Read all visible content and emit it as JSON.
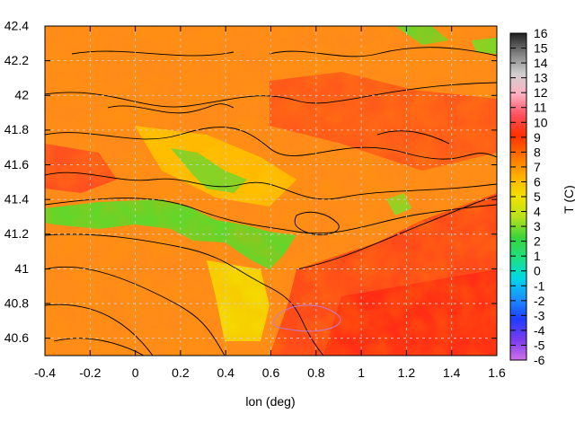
{
  "chart_data": {
    "type": "heatmap",
    "title": "",
    "xlabel": "lon (deg)",
    "ylabel": "",
    "colorbar_label": "T (C)",
    "xlim": [
      -0.4,
      1.6
    ],
    "ylim": [
      40.5,
      42.4
    ],
    "x_ticks": [
      "-0.4",
      "-0.2",
      "0",
      "0.2",
      "0.4",
      "0.6",
      "0.8",
      "1",
      "1.2",
      "1.4",
      "1.6"
    ],
    "y_ticks": [
      "40.6",
      "40.8",
      "41",
      "41.2",
      "41.4",
      "41.6",
      "41.8",
      "42",
      "42.2",
      "42.4"
    ],
    "colorbar_range": [
      -6,
      16
    ],
    "colorbar_ticks": [
      "-6",
      "-5",
      "-4",
      "-3",
      "-2",
      "-1",
      "0",
      "1",
      "2",
      "3",
      "4",
      "5",
      "6",
      "7",
      "8",
      "9",
      "10",
      "11",
      "12",
      "13",
      "14",
      "15",
      "16"
    ],
    "grid": true,
    "contour_lines": true,
    "dominant_values_C": {
      "lowland_and_coast": 10,
      "valleys": 8,
      "inland_plateaus": 7,
      "cool_river_corridors": 4
    }
  },
  "colors": {
    "colorbar_stops": [
      "#d070e8",
      "#7a3cf0",
      "#1f3cff",
      "#1a90ff",
      "#00d8e8",
      "#1ee080",
      "#3ad43a",
      "#b8e21a",
      "#f2e200",
      "#ffb000",
      "#ff7000",
      "#ff3000",
      "#ff5060",
      "#ffb0c0",
      "#d0d0d0",
      "#808080",
      "#202020"
    ]
  }
}
